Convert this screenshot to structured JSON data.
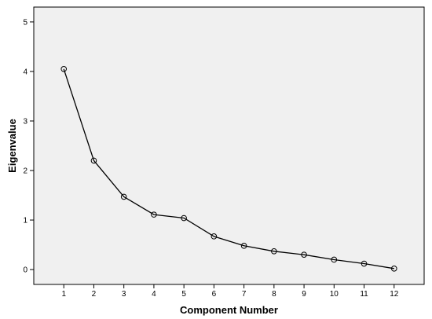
{
  "chart_data": {
    "type": "line",
    "title": "",
    "xlabel": "Component Number",
    "ylabel": "Eigenvalue",
    "x": [
      1,
      2,
      3,
      4,
      5,
      6,
      7,
      8,
      9,
      10,
      11,
      12
    ],
    "series": [
      {
        "values": [
          4.05,
          2.2,
          1.47,
          1.11,
          1.04,
          0.67,
          0.48,
          0.37,
          0.3,
          0.2,
          0.12,
          0.02
        ]
      }
    ],
    "xlim": [
      0,
      13
    ],
    "ylim": [
      -0.3,
      5.3
    ],
    "yticks": [
      0,
      1,
      2,
      3,
      4,
      5
    ],
    "grid": false,
    "colors": {
      "plot_background": "#f0f0f0",
      "line": "#000000",
      "marker": "#000000"
    }
  }
}
